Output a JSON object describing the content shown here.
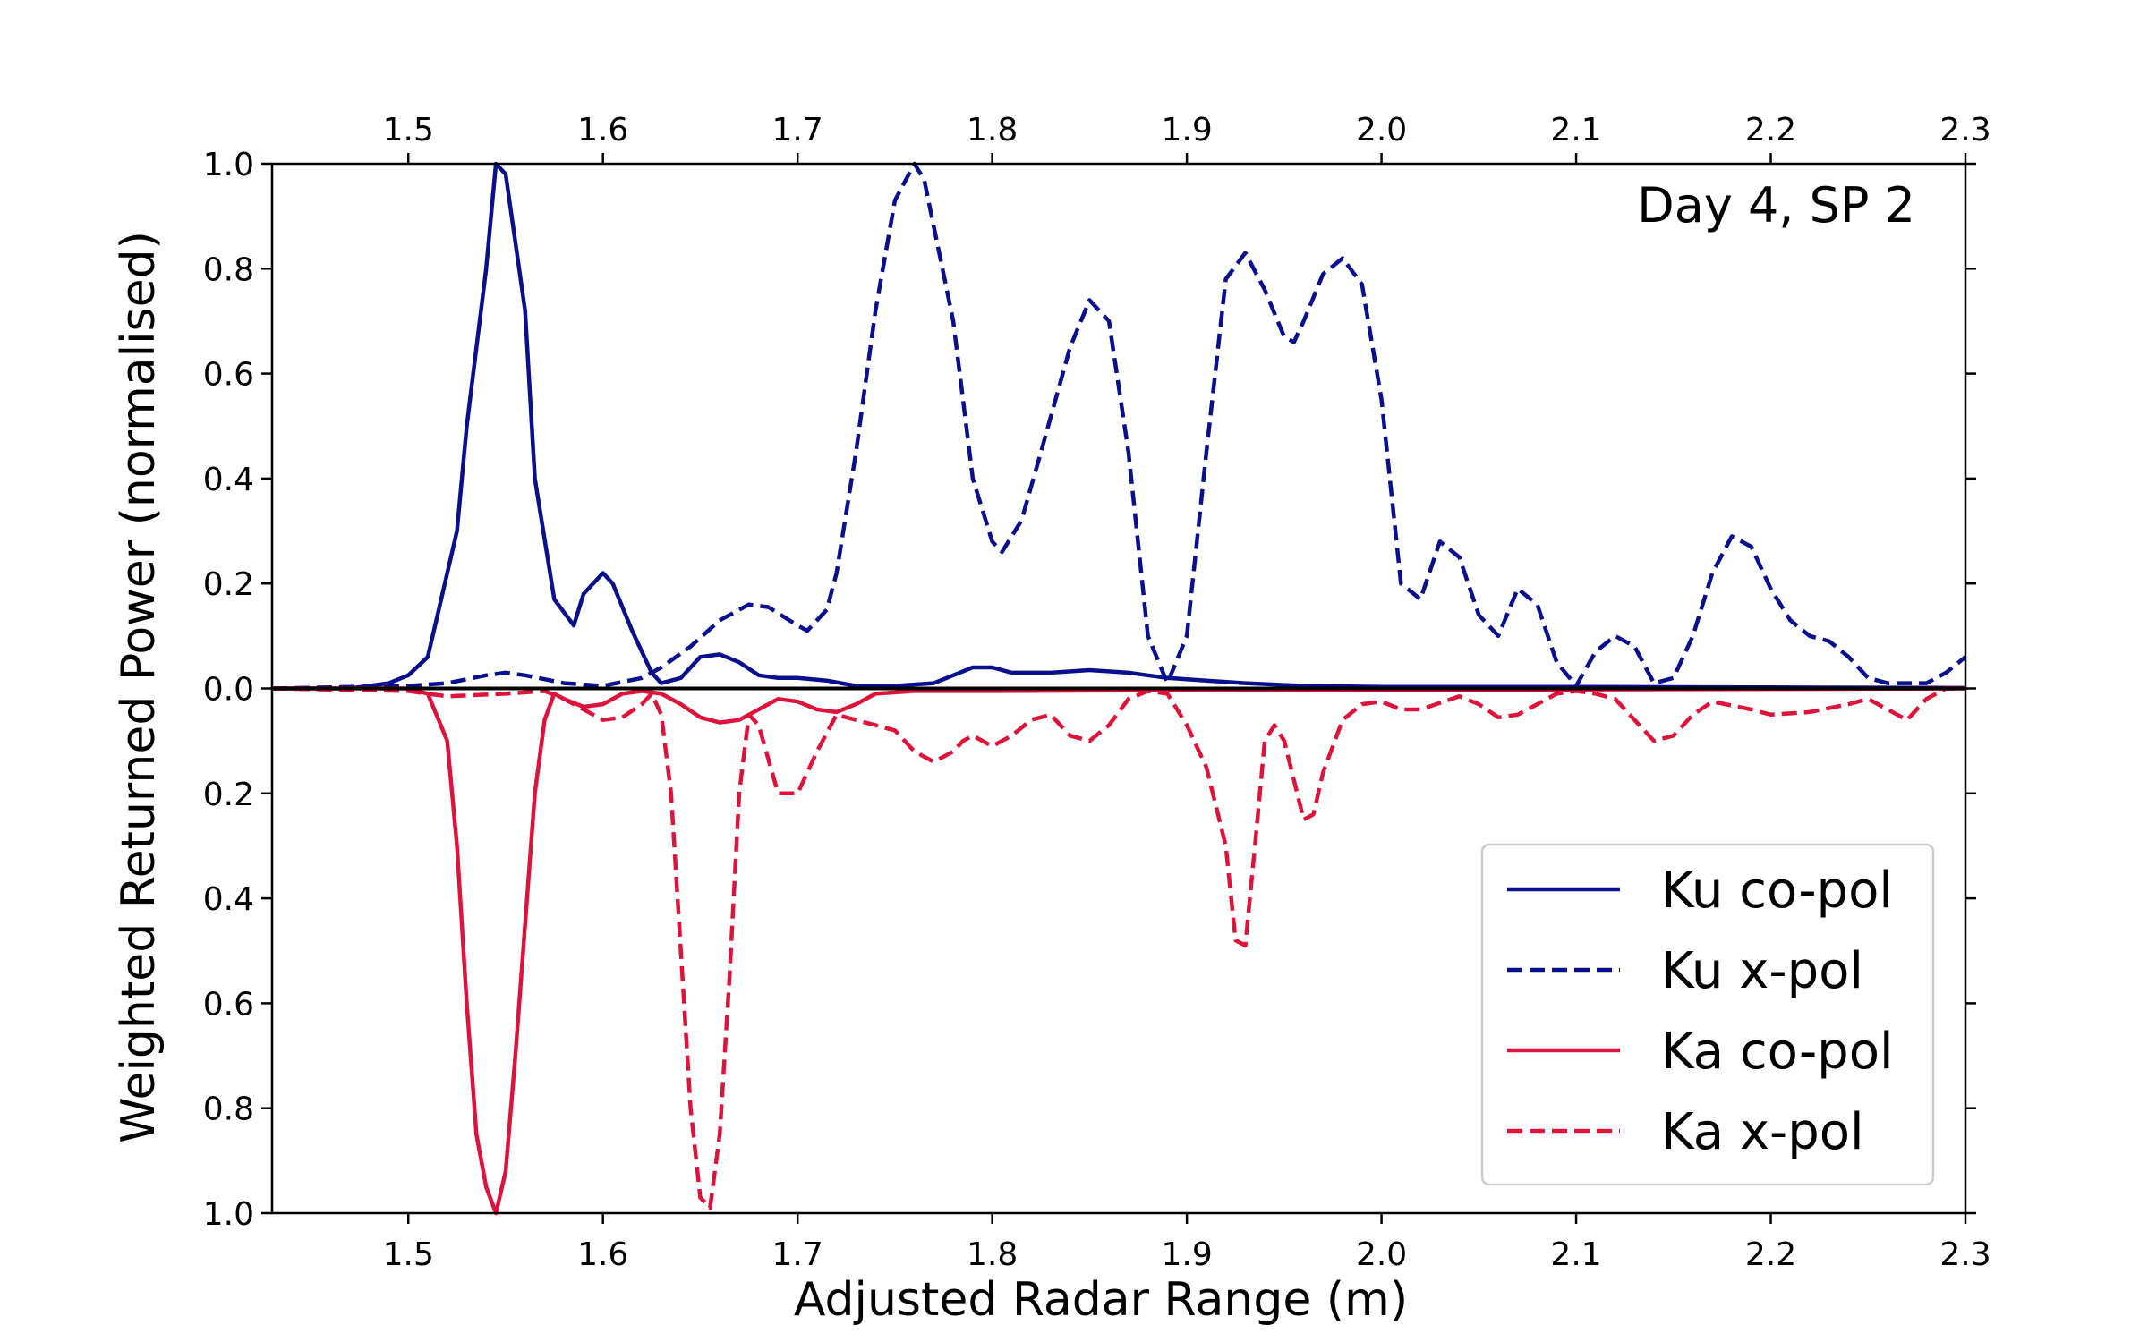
{
  "chart_data": {
    "type": "line",
    "annotation": "Day 4, SP 2",
    "xlabel": "Adjusted Radar Range (m)",
    "ylabel": "Weighted Returned Power (normalised)",
    "xlim": [
      1.43,
      2.3
    ],
    "ylim": [
      -1.0,
      1.0
    ],
    "x_ticks": [
      1.5,
      1.6,
      1.7,
      1.8,
      1.9,
      2.0,
      2.1,
      2.2,
      2.3
    ],
    "x_tick_labels": [
      "1.5",
      "1.6",
      "1.7",
      "1.8",
      "1.9",
      "2.0",
      "2.1",
      "2.2",
      "2.3"
    ],
    "y_ticks": [
      1.0,
      0.8,
      0.6,
      0.4,
      0.2,
      0.0,
      -0.2,
      -0.4,
      -0.6,
      -0.8,
      -1.0
    ],
    "y_tick_labels": [
      "1.0",
      "0.8",
      "0.6",
      "0.4",
      "0.2",
      "0.0",
      "0.2",
      "0.4",
      "0.6",
      "0.8",
      "1.0"
    ],
    "grid": false,
    "legend_position": "lower-right",
    "zero_line_color": "#000000",
    "series": [
      {
        "name": "Ku co-pol",
        "color": "#0a0f8c",
        "dash": "solid",
        "points": [
          [
            1.43,
            0.0
          ],
          [
            1.47,
            0.0
          ],
          [
            1.49,
            0.01
          ],
          [
            1.5,
            0.025
          ],
          [
            1.51,
            0.06
          ],
          [
            1.515,
            0.14
          ],
          [
            1.525,
            0.3
          ],
          [
            1.53,
            0.5
          ],
          [
            1.54,
            0.8
          ],
          [
            1.545,
            1.0
          ],
          [
            1.55,
            0.98
          ],
          [
            1.56,
            0.72
          ],
          [
            1.565,
            0.4
          ],
          [
            1.575,
            0.17
          ],
          [
            1.585,
            0.12
          ],
          [
            1.59,
            0.18
          ],
          [
            1.6,
            0.22
          ],
          [
            1.605,
            0.2
          ],
          [
            1.615,
            0.11
          ],
          [
            1.625,
            0.03
          ],
          [
            1.63,
            0.01
          ],
          [
            1.64,
            0.02
          ],
          [
            1.65,
            0.06
          ],
          [
            1.66,
            0.065
          ],
          [
            1.67,
            0.05
          ],
          [
            1.68,
            0.025
          ],
          [
            1.69,
            0.02
          ],
          [
            1.7,
            0.02
          ],
          [
            1.715,
            0.015
          ],
          [
            1.73,
            0.005
          ],
          [
            1.75,
            0.005
          ],
          [
            1.77,
            0.01
          ],
          [
            1.78,
            0.025
          ],
          [
            1.79,
            0.04
          ],
          [
            1.8,
            0.04
          ],
          [
            1.81,
            0.03
          ],
          [
            1.83,
            0.03
          ],
          [
            1.85,
            0.035
          ],
          [
            1.87,
            0.03
          ],
          [
            1.89,
            0.02
          ],
          [
            1.91,
            0.015
          ],
          [
            1.93,
            0.01
          ],
          [
            1.96,
            0.005
          ],
          [
            2.0,
            0.003
          ],
          [
            2.1,
            0.003
          ],
          [
            2.2,
            0.002
          ],
          [
            2.3,
            0.001
          ]
        ]
      },
      {
        "name": "Ku x-pol",
        "color": "#0a0f8c",
        "dash": "dashed",
        "points": [
          [
            1.43,
            0.0
          ],
          [
            1.5,
            0.005
          ],
          [
            1.52,
            0.01
          ],
          [
            1.54,
            0.025
          ],
          [
            1.55,
            0.03
          ],
          [
            1.56,
            0.025
          ],
          [
            1.58,
            0.01
          ],
          [
            1.6,
            0.005
          ],
          [
            1.62,
            0.02
          ],
          [
            1.63,
            0.04
          ],
          [
            1.645,
            0.08
          ],
          [
            1.66,
            0.13
          ],
          [
            1.675,
            0.16
          ],
          [
            1.685,
            0.155
          ],
          [
            1.7,
            0.12
          ],
          [
            1.705,
            0.11
          ],
          [
            1.715,
            0.15
          ],
          [
            1.72,
            0.22
          ],
          [
            1.73,
            0.45
          ],
          [
            1.74,
            0.72
          ],
          [
            1.75,
            0.93
          ],
          [
            1.76,
            1.0
          ],
          [
            1.765,
            0.97
          ],
          [
            1.77,
            0.88
          ],
          [
            1.78,
            0.7
          ],
          [
            1.79,
            0.4
          ],
          [
            1.8,
            0.28
          ],
          [
            1.805,
            0.26
          ],
          [
            1.815,
            0.32
          ],
          [
            1.825,
            0.45
          ],
          [
            1.84,
            0.65
          ],
          [
            1.85,
            0.74
          ],
          [
            1.86,
            0.7
          ],
          [
            1.87,
            0.45
          ],
          [
            1.88,
            0.1
          ],
          [
            1.89,
            0.01
          ],
          [
            1.9,
            0.1
          ],
          [
            1.91,
            0.45
          ],
          [
            1.92,
            0.78
          ],
          [
            1.93,
            0.83
          ],
          [
            1.94,
            0.76
          ],
          [
            1.95,
            0.67
          ],
          [
            1.955,
            0.66
          ],
          [
            1.96,
            0.7
          ],
          [
            1.97,
            0.79
          ],
          [
            1.98,
            0.82
          ],
          [
            1.99,
            0.77
          ],
          [
            2.0,
            0.55
          ],
          [
            2.01,
            0.2
          ],
          [
            2.02,
            0.17
          ],
          [
            2.03,
            0.28
          ],
          [
            2.04,
            0.25
          ],
          [
            2.05,
            0.14
          ],
          [
            2.06,
            0.1
          ],
          [
            2.07,
            0.19
          ],
          [
            2.08,
            0.16
          ],
          [
            2.09,
            0.05
          ],
          [
            2.1,
            0.005
          ],
          [
            2.11,
            0.07
          ],
          [
            2.12,
            0.1
          ],
          [
            2.13,
            0.08
          ],
          [
            2.14,
            0.01
          ],
          [
            2.15,
            0.02
          ],
          [
            2.16,
            0.1
          ],
          [
            2.17,
            0.22
          ],
          [
            2.18,
            0.29
          ],
          [
            2.19,
            0.27
          ],
          [
            2.2,
            0.19
          ],
          [
            2.21,
            0.13
          ],
          [
            2.22,
            0.1
          ],
          [
            2.23,
            0.09
          ],
          [
            2.24,
            0.06
          ],
          [
            2.25,
            0.02
          ],
          [
            2.26,
            0.01
          ],
          [
            2.28,
            0.01
          ],
          [
            2.29,
            0.03
          ],
          [
            2.3,
            0.06
          ]
        ]
      },
      {
        "name": "Ka co-pol",
        "color": "#dc143c",
        "dash": "solid",
        "points": [
          [
            1.43,
            0.0
          ],
          [
            1.5,
            0.0
          ],
          [
            1.51,
            -0.01
          ],
          [
            1.52,
            -0.1
          ],
          [
            1.525,
            -0.3
          ],
          [
            1.53,
            -0.6
          ],
          [
            1.535,
            -0.85
          ],
          [
            1.54,
            -0.95
          ],
          [
            1.545,
            -1.0
          ],
          [
            1.55,
            -0.92
          ],
          [
            1.555,
            -0.7
          ],
          [
            1.56,
            -0.45
          ],
          [
            1.565,
            -0.2
          ],
          [
            1.57,
            -0.06
          ],
          [
            1.575,
            -0.01
          ],
          [
            1.58,
            -0.02
          ],
          [
            1.59,
            -0.035
          ],
          [
            1.6,
            -0.03
          ],
          [
            1.61,
            -0.01
          ],
          [
            1.62,
            -0.005
          ],
          [
            1.63,
            -0.01
          ],
          [
            1.64,
            -0.03
          ],
          [
            1.65,
            -0.055
          ],
          [
            1.66,
            -0.065
          ],
          [
            1.67,
            -0.06
          ],
          [
            1.68,
            -0.04
          ],
          [
            1.69,
            -0.02
          ],
          [
            1.7,
            -0.025
          ],
          [
            1.71,
            -0.04
          ],
          [
            1.72,
            -0.045
          ],
          [
            1.73,
            -0.03
          ],
          [
            1.74,
            -0.01
          ],
          [
            1.76,
            -0.005
          ],
          [
            1.8,
            -0.005
          ],
          [
            1.9,
            -0.003
          ],
          [
            2.0,
            -0.002
          ],
          [
            2.1,
            -0.002
          ],
          [
            2.2,
            -0.001
          ],
          [
            2.3,
            0.0
          ]
        ]
      },
      {
        "name": "Ka x-pol",
        "color": "#dc143c",
        "dash": "dashed",
        "points": [
          [
            1.43,
            0.0
          ],
          [
            1.5,
            -0.005
          ],
          [
            1.52,
            -0.015
          ],
          [
            1.55,
            -0.01
          ],
          [
            1.57,
            -0.005
          ],
          [
            1.58,
            -0.02
          ],
          [
            1.59,
            -0.04
          ],
          [
            1.6,
            -0.06
          ],
          [
            1.61,
            -0.055
          ],
          [
            1.62,
            -0.03
          ],
          [
            1.625,
            -0.01
          ],
          [
            1.63,
            -0.05
          ],
          [
            1.635,
            -0.2
          ],
          [
            1.64,
            -0.5
          ],
          [
            1.645,
            -0.8
          ],
          [
            1.65,
            -0.97
          ],
          [
            1.655,
            -0.99
          ],
          [
            1.66,
            -0.85
          ],
          [
            1.665,
            -0.55
          ],
          [
            1.67,
            -0.2
          ],
          [
            1.675,
            -0.05
          ],
          [
            1.68,
            -0.07
          ],
          [
            1.69,
            -0.2
          ],
          [
            1.7,
            -0.2
          ],
          [
            1.71,
            -0.12
          ],
          [
            1.72,
            -0.05
          ],
          [
            1.73,
            -0.06
          ],
          [
            1.74,
            -0.07
          ],
          [
            1.75,
            -0.08
          ],
          [
            1.76,
            -0.12
          ],
          [
            1.77,
            -0.14
          ],
          [
            1.78,
            -0.12
          ],
          [
            1.785,
            -0.1
          ],
          [
            1.79,
            -0.09
          ],
          [
            1.8,
            -0.11
          ],
          [
            1.81,
            -0.09
          ],
          [
            1.82,
            -0.06
          ],
          [
            1.83,
            -0.05
          ],
          [
            1.84,
            -0.09
          ],
          [
            1.85,
            -0.1
          ],
          [
            1.86,
            -0.07
          ],
          [
            1.87,
            -0.02
          ],
          [
            1.88,
            -0.005
          ],
          [
            1.89,
            -0.01
          ],
          [
            1.9,
            -0.07
          ],
          [
            1.91,
            -0.15
          ],
          [
            1.92,
            -0.3
          ],
          [
            1.925,
            -0.48
          ],
          [
            1.93,
            -0.49
          ],
          [
            1.935,
            -0.3
          ],
          [
            1.94,
            -0.1
          ],
          [
            1.945,
            -0.07
          ],
          [
            1.95,
            -0.1
          ],
          [
            1.96,
            -0.25
          ],
          [
            1.965,
            -0.24
          ],
          [
            1.97,
            -0.16
          ],
          [
            1.98,
            -0.06
          ],
          [
            1.99,
            -0.03
          ],
          [
            2.0,
            -0.025
          ],
          [
            2.01,
            -0.04
          ],
          [
            2.02,
            -0.04
          ],
          [
            2.04,
            -0.015
          ],
          [
            2.05,
            -0.03
          ],
          [
            2.06,
            -0.055
          ],
          [
            2.07,
            -0.05
          ],
          [
            2.08,
            -0.03
          ],
          [
            2.09,
            -0.01
          ],
          [
            2.1,
            -0.005
          ],
          [
            2.11,
            -0.01
          ],
          [
            2.12,
            -0.02
          ],
          [
            2.13,
            -0.06
          ],
          [
            2.14,
            -0.1
          ],
          [
            2.15,
            -0.09
          ],
          [
            2.16,
            -0.05
          ],
          [
            2.17,
            -0.025
          ],
          [
            2.19,
            -0.04
          ],
          [
            2.2,
            -0.05
          ],
          [
            2.22,
            -0.045
          ],
          [
            2.24,
            -0.03
          ],
          [
            2.25,
            -0.02
          ],
          [
            2.26,
            -0.04
          ],
          [
            2.27,
            -0.06
          ],
          [
            2.28,
            -0.02
          ],
          [
            2.29,
            0.0
          ],
          [
            2.3,
            0.0
          ]
        ]
      }
    ]
  }
}
